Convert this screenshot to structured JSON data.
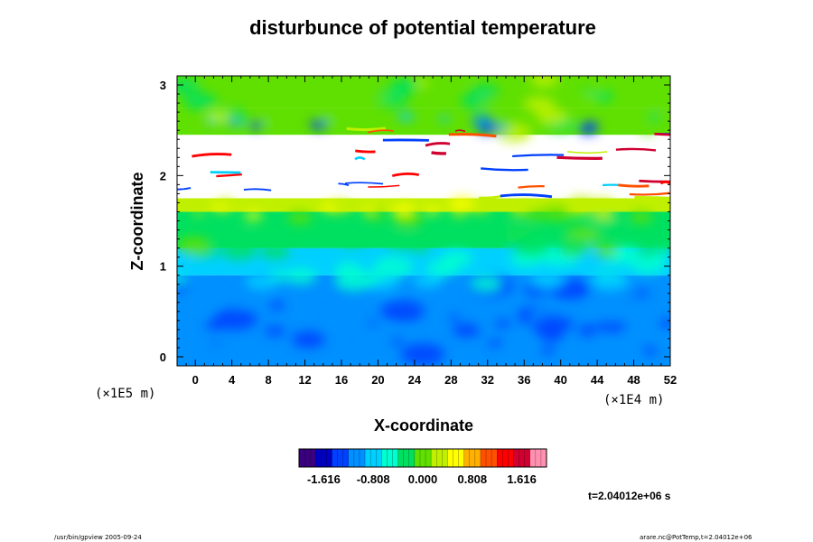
{
  "chart_data": {
    "type": "heatmap",
    "title": "disturbunce of potential temperature",
    "xlabel": "X-coordinate",
    "ylabel": "Z-coordinate",
    "x_scale": "(×1E4 m)",
    "y_scale": "(×1E5 m)",
    "xlim": [
      -2,
      52
    ],
    "ylim": [
      -0.1,
      3.1
    ],
    "x_ticks": [
      "0",
      "4",
      "8",
      "12",
      "16",
      "20",
      "24",
      "28",
      "32",
      "36",
      "40",
      "44",
      "48",
      "52"
    ],
    "y_ticks": [
      "0",
      "1",
      "2",
      "3"
    ],
    "colorbar": {
      "range": [
        -2.02,
        2.02
      ],
      "tick_labels": [
        "-1.616",
        "-0.808",
        "0.000",
        "0.808",
        "1.616"
      ],
      "colors": [
        "#3a0080",
        "#0000c0",
        "#0040ff",
        "#0090ff",
        "#00d0ff",
        "#00ffd0",
        "#00e060",
        "#60e000",
        "#c0f000",
        "#ffff00",
        "#ffb000",
        "#ff5000",
        "#ff0000",
        "#d00030",
        "#ff90b0"
      ]
    },
    "field_bands": [
      {
        "z_range": [
          -0.1,
          0.9
        ],
        "value": -1.1,
        "description": "Blue"
      },
      {
        "z_range": [
          0.9,
          1.2
        ],
        "value": -0.75,
        "description": "Cyan"
      },
      {
        "z_range": [
          1.2,
          1.6
        ],
        "value": -0.2,
        "description": "Green"
      },
      {
        "z_range": [
          1.6,
          1.75
        ],
        "value": 0.3,
        "description": "Yellow-green"
      },
      {
        "z_range": [
          1.75,
          2.45
        ],
        "value": null,
        "description": "White"
      },
      {
        "z_range": [
          2.45,
          2.75
        ],
        "value": 0.0,
        "description": "Green"
      },
      {
        "z_range": [
          2.75,
          3.1
        ],
        "value": 0.1,
        "description": "Green"
      }
    ]
  },
  "annotations": {
    "time": "t=2.04012e+06 s",
    "footer_left": "/usr/bin/gpview 2005-09-24",
    "footer_right": "arare.nc@PotTemp,t=2.04012e+06"
  }
}
